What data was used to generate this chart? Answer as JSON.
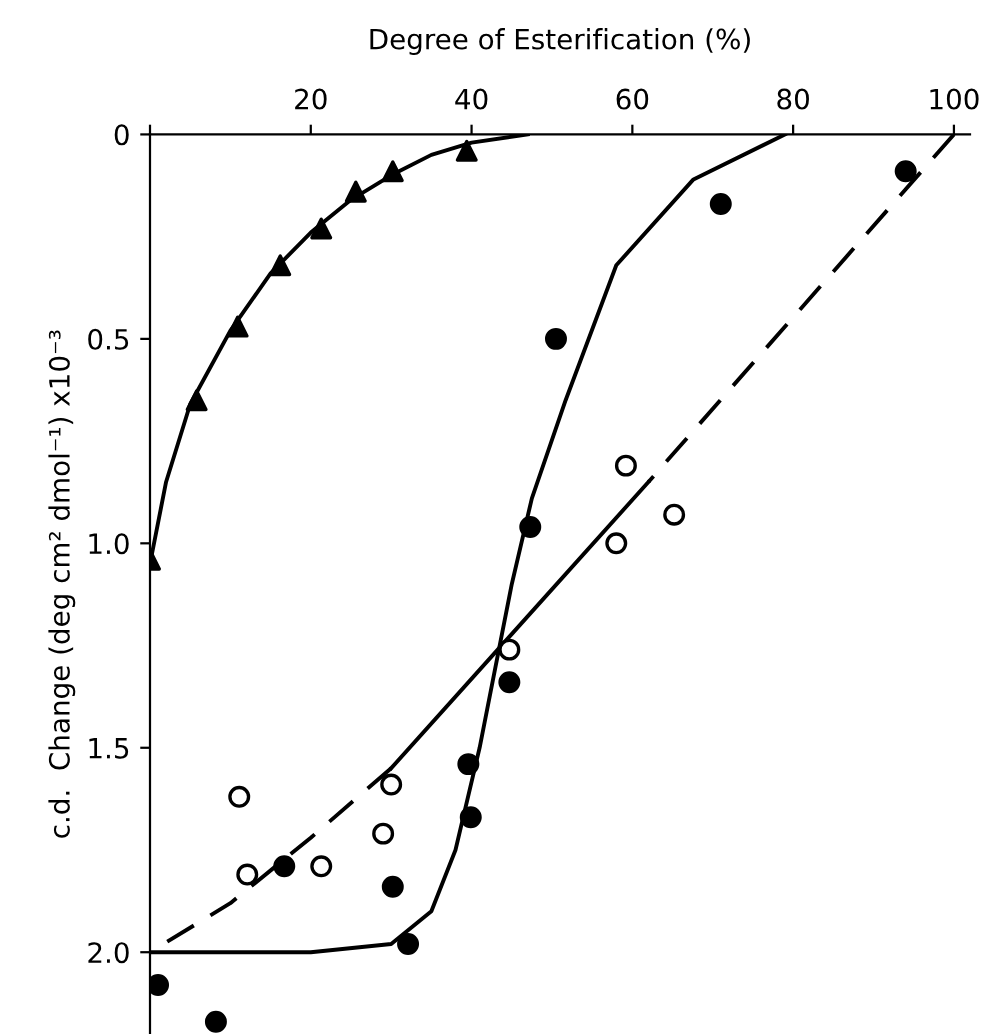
{
  "chart_data": {
    "type": "scatter",
    "xlabel": "Degree of Esterification (%)",
    "ylabel": "c.d.  Change (deg cm² dmol⁻¹) x10⁻³",
    "xlim": [
      0,
      102
    ],
    "xticks": [
      {
        "value": 0,
        "label": null
      },
      20,
      40,
      60,
      80,
      100
    ],
    "ylim": [
      2.2,
      0
    ],
    "yticks": [
      0,
      {
        "value": 0.5,
        "label": "0.5"
      },
      {
        "value": 1.0,
        "label": "1.0"
      },
      {
        "value": 1.5,
        "label": "1.5"
      },
      {
        "value": 2.0,
        "label": "2.0"
      }
    ],
    "grid": false,
    "legend": false,
    "series": [
      {
        "marker": "triangle",
        "color": "#000000",
        "x": [
          0,
          5.8,
          10.9,
          16.2,
          21.3,
          25.6,
          30.2,
          39.4
        ],
        "values": [
          1.04,
          0.65,
          0.47,
          0.32,
          0.23,
          0.14,
          0.09,
          0.04
        ]
      },
      {
        "marker": "circle",
        "color": "#000000",
        "x": [
          94,
          71,
          50.5,
          47.3,
          44.7,
          39.6,
          39.9,
          30.2,
          32.1,
          16.7,
          1,
          8.2
        ],
        "values": [
          0.09,
          0.17,
          0.5,
          0.96,
          1.34,
          1.54,
          1.67,
          1.84,
          1.98,
          1.79,
          2.08,
          2.17
        ]
      },
      {
        "marker": "circle",
        "color": "#ffffff",
        "x": [
          59.2,
          65.2,
          58,
          44.7,
          30,
          29,
          11.1,
          12.1,
          21.3
        ],
        "values": [
          0.81,
          0.93,
          1.0,
          1.26,
          1.59,
          1.71,
          1.62,
          1.81,
          1.79
        ]
      },
      {
        "type": "line",
        "marker": "none",
        "line_style": "solid",
        "color": "#000000",
        "x": [
          0,
          2,
          5,
          10,
          15,
          20,
          25,
          30,
          35,
          40,
          47
        ],
        "values": [
          1.05,
          0.85,
          0.66,
          0.48,
          0.34,
          0.24,
          0.16,
          0.1,
          0.05,
          0.02,
          0
        ]
      },
      {
        "type": "line",
        "marker": "none",
        "line_style": "solid",
        "color": "#000000",
        "x": [
          0,
          20,
          30,
          35,
          38,
          41,
          43,
          45,
          47.5,
          51.7,
          58,
          67.6,
          79
        ],
        "values": [
          2.0,
          2.0,
          1.98,
          1.9,
          1.75,
          1.5,
          1.3,
          1.1,
          0.89,
          0.65,
          0.32,
          0.11,
          0
        ]
      },
      {
        "type": "line",
        "marker": "none",
        "line_style": "dashed",
        "color": "#000000",
        "x": [
          100,
          62
        ],
        "values": [
          0,
          0.85
        ]
      },
      {
        "type": "line",
        "marker": "none",
        "line_style": "solid",
        "color": "#000000",
        "x": [
          62,
          30
        ],
        "values": [
          0.85,
          1.55
        ]
      },
      {
        "type": "line",
        "marker": "none",
        "line_style": "dashed",
        "color": "#000000",
        "x": [
          30,
          20,
          10,
          0
        ],
        "values": [
          1.55,
          1.72,
          1.88,
          2.0
        ]
      }
    ]
  }
}
